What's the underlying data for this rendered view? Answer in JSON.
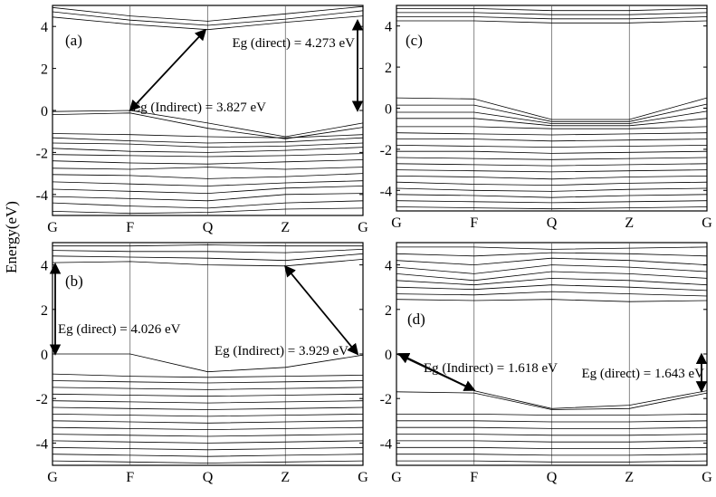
{
  "ylabel": "Energy(eV)",
  "chart_data": [
    {
      "type": "line",
      "panel_label": "(a)",
      "k_points": [
        "G",
        "F",
        "Q",
        "Z",
        "G"
      ],
      "ylim": [
        -5,
        5
      ],
      "yticks": [
        4,
        2,
        0,
        -2,
        -4
      ],
      "grid": "vertical lines at high-symmetry points",
      "series": [
        {
          "values": [
            4.9,
            4.5,
            4.25,
            4.6,
            4.95
          ]
        },
        {
          "values": [
            4.7,
            4.3,
            4.05,
            4.35,
            4.75
          ]
        },
        {
          "values": [
            4.45,
            4.1,
            3.85,
            4.2,
            4.5
          ]
        },
        {
          "values": [
            -0.05,
            0.0,
            -0.6,
            -1.25,
            -0.6
          ]
        },
        {
          "values": [
            -0.2,
            -0.12,
            -0.85,
            -1.35,
            -0.8
          ]
        },
        {
          "values": [
            -1.1,
            -1.15,
            -1.25,
            -1.3,
            -1.15
          ]
        },
        {
          "values": [
            -1.3,
            -1.45,
            -1.55,
            -1.5,
            -1.3
          ]
        },
        {
          "values": [
            -1.55,
            -1.6,
            -1.75,
            -1.7,
            -1.55
          ]
        },
        {
          "values": [
            -1.8,
            -1.95,
            -2.0,
            -1.9,
            -1.75
          ]
        },
        {
          "values": [
            -2.1,
            -2.15,
            -2.2,
            -2.15,
            -2.05
          ]
        },
        {
          "values": [
            -2.4,
            -2.5,
            -2.55,
            -2.45,
            -2.35
          ]
        },
        {
          "values": [
            -2.75,
            -2.8,
            -2.7,
            -2.8,
            -2.7
          ]
        },
        {
          "values": [
            -3.05,
            -3.1,
            -3.25,
            -3.15,
            -3.0
          ]
        },
        {
          "values": [
            -3.4,
            -3.5,
            -3.6,
            -3.45,
            -3.35
          ]
        },
        {
          "values": [
            -3.75,
            -3.85,
            -3.95,
            -3.7,
            -3.6
          ]
        },
        {
          "values": [
            -4.1,
            -4.2,
            -4.3,
            -4.0,
            -3.95
          ]
        },
        {
          "values": [
            -4.4,
            -4.55,
            -4.65,
            -4.4,
            -4.3
          ]
        },
        {
          "values": [
            -4.8,
            -4.9,
            -4.85,
            -4.7,
            -4.65
          ]
        }
      ],
      "annotations": [
        {
          "text": "Eg (direct) = 4.273 eV",
          "from": [
            4,
            4.27
          ],
          "to": [
            4,
            0
          ]
        },
        {
          "text": "Eg (Indirect) = 3.827 eV",
          "from": [
            1,
            0
          ],
          "to": [
            1.97,
            3.83
          ]
        }
      ]
    },
    {
      "type": "line",
      "panel_label": "(c)",
      "k_points": [
        "G",
        "F",
        "Q",
        "Z",
        "G"
      ],
      "ylim": [
        -5,
        5
      ],
      "yticks": [
        4,
        2,
        0,
        -2,
        -4
      ],
      "grid": "vertical lines at high-symmetry points",
      "series": [
        {
          "values": [
            4.85,
            4.85,
            4.75,
            4.75,
            4.85
          ]
        },
        {
          "values": [
            4.65,
            4.65,
            4.55,
            4.55,
            4.65
          ]
        },
        {
          "values": [
            4.45,
            4.45,
            4.35,
            4.35,
            4.45
          ]
        },
        {
          "values": [
            4.25,
            4.25,
            4.15,
            4.15,
            4.25
          ]
        },
        {
          "values": [
            0.5,
            0.45,
            -0.55,
            -0.55,
            0.5
          ]
        },
        {
          "values": [
            0.15,
            0.15,
            -0.65,
            -0.65,
            0.2
          ]
        },
        {
          "values": [
            -0.2,
            -0.2,
            -0.75,
            -0.75,
            -0.15
          ]
        },
        {
          "values": [
            -0.5,
            -0.5,
            -0.85,
            -0.85,
            -0.5
          ]
        },
        {
          "values": [
            -0.9,
            -0.9,
            -1.0,
            -1.0,
            -0.9
          ]
        },
        {
          "values": [
            -1.2,
            -1.25,
            -1.3,
            -1.25,
            -1.2
          ]
        },
        {
          "values": [
            -1.5,
            -1.5,
            -1.6,
            -1.55,
            -1.5
          ]
        },
        {
          "values": [
            -1.8,
            -1.85,
            -1.9,
            -1.85,
            -1.8
          ]
        },
        {
          "values": [
            -2.1,
            -2.1,
            -2.2,
            -2.15,
            -2.1
          ]
        },
        {
          "values": [
            -2.4,
            -2.45,
            -2.5,
            -2.45,
            -2.4
          ]
        },
        {
          "values": [
            -2.7,
            -2.75,
            -2.8,
            -2.75,
            -2.7
          ]
        },
        {
          "values": [
            -3.0,
            -3.05,
            -3.1,
            -3.05,
            -3.0
          ]
        },
        {
          "values": [
            -3.3,
            -3.35,
            -3.45,
            -3.35,
            -3.3
          ]
        },
        {
          "values": [
            -3.6,
            -3.7,
            -3.75,
            -3.65,
            -3.6
          ]
        },
        {
          "values": [
            -3.9,
            -4.0,
            -4.05,
            -3.95,
            -3.9
          ]
        },
        {
          "values": [
            -4.2,
            -4.25,
            -4.35,
            -4.25,
            -4.2
          ]
        },
        {
          "values": [
            -4.5,
            -4.55,
            -4.6,
            -4.55,
            -4.5
          ]
        },
        {
          "values": [
            -4.8,
            -4.85,
            -4.9,
            -4.85,
            -4.8
          ]
        }
      ],
      "annotations": []
    },
    {
      "type": "line",
      "panel_label": "(b)",
      "k_points": [
        "G",
        "F",
        "Q",
        "Z",
        "G"
      ],
      "ylim": [
        -5,
        5
      ],
      "yticks": [
        4,
        2,
        0,
        -2,
        -4
      ],
      "grid": "vertical lines at high-symmetry points",
      "series": [
        {
          "values": [
            4.85,
            4.85,
            4.9,
            4.85,
            4.85
          ]
        },
        {
          "values": [
            4.65,
            4.6,
            4.6,
            4.55,
            4.7
          ]
        },
        {
          "values": [
            4.4,
            4.35,
            4.3,
            4.2,
            4.5
          ]
        },
        {
          "values": [
            4.1,
            4.15,
            4.0,
            3.95,
            4.25
          ]
        },
        {
          "values": [
            0.0,
            0.0,
            -0.8,
            -0.6,
            -0.05
          ]
        },
        {
          "values": [
            -0.9,
            -1.0,
            -1.05,
            -1.0,
            -0.95
          ]
        },
        {
          "values": [
            -1.2,
            -1.25,
            -1.3,
            -1.25,
            -1.2
          ]
        },
        {
          "values": [
            -1.5,
            -1.55,
            -1.6,
            -1.55,
            -1.5
          ]
        },
        {
          "values": [
            -1.8,
            -1.85,
            -1.9,
            -1.85,
            -1.8
          ]
        },
        {
          "values": [
            -2.1,
            -2.15,
            -2.2,
            -2.15,
            -2.1
          ]
        },
        {
          "values": [
            -2.4,
            -2.45,
            -2.5,
            -2.45,
            -2.4
          ]
        },
        {
          "values": [
            -2.7,
            -2.75,
            -2.8,
            -2.75,
            -2.7
          ]
        },
        {
          "values": [
            -3.0,
            -3.05,
            -3.1,
            -3.05,
            -3.0
          ]
        },
        {
          "values": [
            -3.3,
            -3.35,
            -3.4,
            -3.35,
            -3.3
          ]
        },
        {
          "values": [
            -3.6,
            -3.65,
            -3.7,
            -3.65,
            -3.6
          ]
        },
        {
          "values": [
            -3.9,
            -3.95,
            -4.0,
            -3.95,
            -3.9
          ]
        },
        {
          "values": [
            -4.2,
            -4.25,
            -4.3,
            -4.25,
            -4.2
          ]
        },
        {
          "values": [
            -4.5,
            -4.55,
            -4.6,
            -4.55,
            -4.5
          ]
        },
        {
          "values": [
            -4.8,
            -4.85,
            -4.9,
            -4.85,
            -4.8
          ]
        }
      ],
      "annotations": [
        {
          "text": "Eg (direct) = 4.026 eV",
          "from": [
            0,
            4.03
          ],
          "to": [
            0,
            0
          ]
        },
        {
          "text": "Eg (Indirect) = 3.929 eV",
          "from": [
            3,
            3.93
          ],
          "to": [
            4,
            0
          ]
        }
      ]
    },
    {
      "type": "line",
      "panel_label": "(d)",
      "k_points": [
        "G",
        "F",
        "Q",
        "Z",
        "G"
      ],
      "ylim": [
        -5,
        5
      ],
      "yticks": [
        4,
        2,
        0,
        -2,
        -4
      ],
      "grid": "vertical lines at high-symmetry points",
      "series": [
        {
          "values": [
            4.8,
            4.8,
            4.7,
            4.75,
            4.8
          ]
        },
        {
          "values": [
            4.5,
            4.4,
            4.55,
            4.5,
            4.4
          ]
        },
        {
          "values": [
            4.2,
            4.0,
            4.3,
            4.2,
            4.0
          ]
        },
        {
          "values": [
            3.9,
            3.6,
            4.0,
            3.9,
            3.7
          ]
        },
        {
          "values": [
            3.6,
            3.3,
            3.7,
            3.6,
            3.4
          ]
        },
        {
          "values": [
            3.3,
            3.1,
            3.4,
            3.3,
            3.1
          ]
        },
        {
          "values": [
            3.0,
            2.9,
            3.1,
            3.0,
            2.85
          ]
        },
        {
          "values": [
            2.7,
            2.65,
            2.8,
            2.7,
            2.6
          ]
        },
        {
          "values": [
            2.45,
            2.4,
            2.45,
            2.35,
            2.4
          ]
        },
        {
          "values": [
            0.0,
            -1.65,
            -2.45,
            -2.3,
            -1.65
          ]
        },
        {
          "values": [
            -1.7,
            -1.75,
            -2.5,
            -2.45,
            -1.75
          ]
        },
        {
          "values": [
            -2.7,
            -2.7,
            -2.75,
            -2.75,
            -2.7
          ]
        },
        {
          "values": [
            -3.0,
            -3.0,
            -3.05,
            -3.05,
            -3.0
          ]
        },
        {
          "values": [
            -3.3,
            -3.3,
            -3.35,
            -3.35,
            -3.3
          ]
        },
        {
          "values": [
            -3.6,
            -3.6,
            -3.65,
            -3.65,
            -3.6
          ]
        },
        {
          "values": [
            -3.9,
            -3.9,
            -3.95,
            -3.95,
            -3.9
          ]
        },
        {
          "values": [
            -4.2,
            -4.2,
            -4.25,
            -4.25,
            -4.2
          ]
        },
        {
          "values": [
            -4.5,
            -4.5,
            -4.55,
            -4.55,
            -4.5
          ]
        },
        {
          "values": [
            -4.8,
            -4.8,
            -4.85,
            -4.85,
            -4.8
          ]
        }
      ],
      "annotations": [
        {
          "text": "Eg (Indirect) = 1.618 eV",
          "from": [
            0,
            0
          ],
          "to": [
            1,
            -1.62
          ]
        },
        {
          "text": "Eg (direct) = 1.643 eV",
          "from": [
            4,
            -0.02
          ],
          "to": [
            4,
            -1.66
          ]
        }
      ]
    }
  ]
}
